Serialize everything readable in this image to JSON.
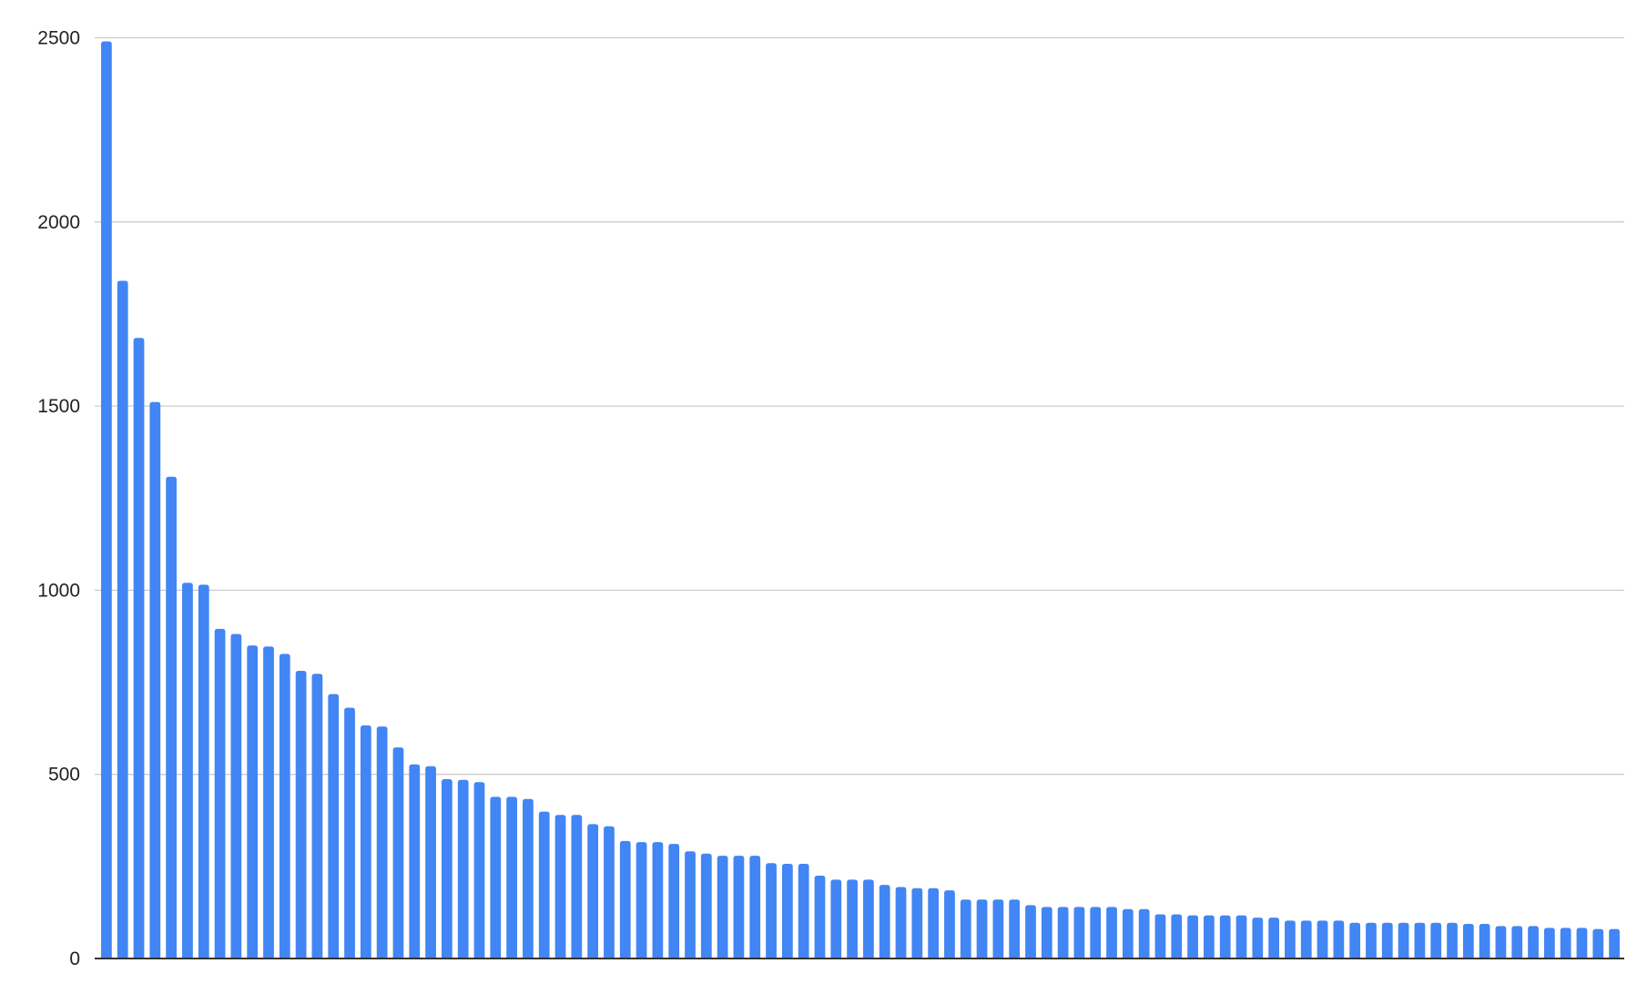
{
  "chart_data": {
    "type": "bar",
    "title": "",
    "xlabel": "",
    "ylabel": "",
    "ylim": [
      0,
      2500
    ],
    "yticks": [
      "0",
      "500",
      "1000",
      "1500",
      "2000",
      "2500"
    ],
    "grid": true,
    "legend": "none",
    "bar_color": "#4285f4",
    "values": [
      2490,
      1840,
      1685,
      1511,
      1308,
      1020,
      1015,
      895,
      881,
      850,
      847,
      827,
      781,
      773,
      718,
      681,
      633,
      630,
      573,
      527,
      522,
      487,
      485,
      479,
      439,
      439,
      433,
      399,
      390,
      390,
      365,
      359,
      319,
      316,
      316,
      311,
      291,
      285,
      279,
      279,
      279,
      259,
      257,
      257,
      225,
      214,
      214,
      214,
      200,
      194,
      191,
      191,
      185,
      160,
      160,
      160,
      160,
      145,
      140,
      140,
      140,
      140,
      140,
      134,
      134,
      120,
      120,
      117,
      117,
      117,
      117,
      111,
      111,
      103,
      103,
      103,
      103,
      97,
      97,
      97,
      97,
      97,
      97,
      97,
      94,
      94,
      88,
      88,
      88,
      83,
      83,
      83,
      80,
      80
    ]
  }
}
